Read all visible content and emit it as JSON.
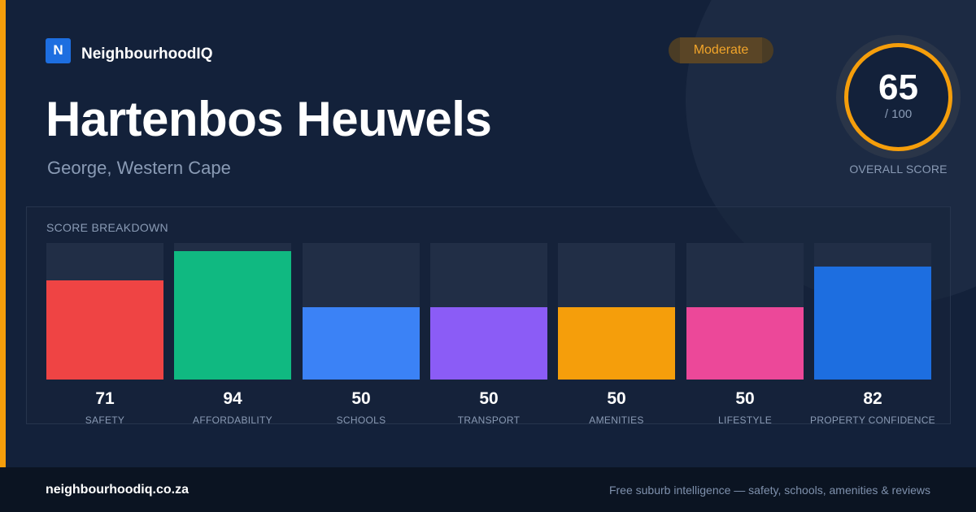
{
  "brand": {
    "logo_letter": "N",
    "name": "NeighbourhoodIQ"
  },
  "suburb": {
    "name": "Hartenbos Heuwels",
    "location": "George, Western Cape"
  },
  "rating_badge": "Moderate",
  "overall": {
    "score": "65",
    "max": "/ 100",
    "label": "OVERALL SCORE",
    "ring_color": "#f59e0b"
  },
  "breakdown": {
    "title": "SCORE BREAKDOWN",
    "metrics": [
      {
        "label": "SAFETY",
        "value": "71",
        "color": "#ef4444"
      },
      {
        "label": "AFFORDABILITY",
        "value": "94",
        "color": "#10b981"
      },
      {
        "label": "SCHOOLS",
        "value": "50",
        "color": "#3b82f6"
      },
      {
        "label": "TRANSPORT",
        "value": "50",
        "color": "#8b5cf6"
      },
      {
        "label": "AMENITIES",
        "value": "50",
        "color": "#f59e0b"
      },
      {
        "label": "LIFESTYLE",
        "value": "50",
        "color": "#ec4899"
      },
      {
        "label": "PROPERTY CONFIDENCE",
        "value": "82",
        "color": "#1d6ee0"
      }
    ]
  },
  "footer": {
    "url": "neighbourhoodiq.co.za",
    "tagline": "Free suburb intelligence — safety, schools, amenities & reviews"
  },
  "colors": {
    "accent": "#f59e0b",
    "background": "#13213a",
    "footer_bg": "#0b1422"
  }
}
